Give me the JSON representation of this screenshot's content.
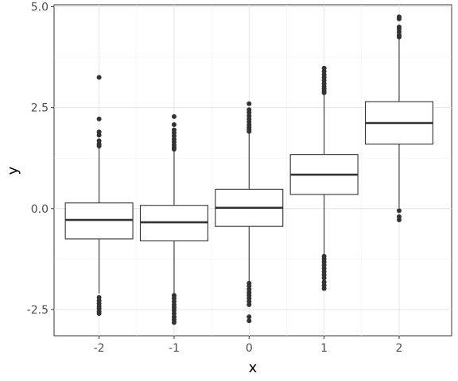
{
  "chart_data": {
    "type": "box",
    "title": "",
    "xlabel": "x",
    "ylabel": "y",
    "categories": [
      "-2",
      "-1",
      "0",
      "1",
      "2"
    ],
    "ylim": [
      -3.15,
      5.05
    ],
    "xlim": [
      -2.6,
      2.7
    ],
    "y_ticks": [
      -2.5,
      0.0,
      2.5,
      5.0
    ],
    "y_tick_labels": [
      "-2.5",
      "0.0",
      "2.5",
      "5.0"
    ],
    "grid": true,
    "boxes": [
      {
        "x": -2,
        "label": "-2",
        "q1": -0.75,
        "median": -0.28,
        "q3": 0.14,
        "whisker_low": -2.1,
        "whisker_high": 1.5,
        "outliers": [
          3.25,
          2.22,
          1.9,
          1.82,
          1.68,
          1.6,
          1.55,
          -2.2,
          -2.28,
          -2.35,
          -2.42,
          -2.48,
          -2.55,
          -2.6
        ]
      },
      {
        "x": -1,
        "label": "-1",
        "q1": -0.8,
        "median": -0.34,
        "q3": 0.08,
        "whisker_low": -2.1,
        "whisker_high": 1.45,
        "outliers": [
          2.28,
          2.08,
          1.95,
          1.88,
          1.8,
          1.72,
          1.65,
          1.58,
          1.52,
          1.47,
          -2.15,
          -2.22,
          -2.3,
          -2.38,
          -2.45,
          -2.52,
          -2.6,
          -2.68,
          -2.75,
          -2.82
        ]
      },
      {
        "x": 0,
        "label": "0",
        "q1": -0.44,
        "median": 0.02,
        "q3": 0.48,
        "whisker_low": -1.82,
        "whisker_high": 1.88,
        "outliers": [
          2.6,
          2.45,
          2.38,
          2.3,
          2.22,
          2.15,
          2.08,
          2.02,
          1.96,
          1.91,
          -1.85,
          -1.92,
          -2.0,
          -2.08,
          -2.15,
          -2.22,
          -2.3,
          -2.38,
          -2.68,
          -2.78
        ]
      },
      {
        "x": 1,
        "label": "1",
        "q1": 0.35,
        "median": 0.84,
        "q3": 1.34,
        "whisker_low": -1.15,
        "whisker_high": 2.85,
        "outliers": [
          3.48,
          3.4,
          3.32,
          3.25,
          3.18,
          3.1,
          3.03,
          2.97,
          2.91,
          2.87,
          -1.18,
          -1.25,
          -1.32,
          -1.4,
          -1.48,
          -1.56,
          -1.64,
          -1.72,
          -1.82,
          -1.9,
          -1.98
        ]
      },
      {
        "x": 2,
        "label": "2",
        "q1": 1.6,
        "median": 2.12,
        "q3": 2.65,
        "whisker_low": 0.02,
        "whisker_high": 4.22,
        "outliers": [
          4.75,
          4.7,
          4.5,
          4.45,
          4.38,
          4.3,
          4.25,
          -0.05,
          -0.2,
          -0.28
        ]
      }
    ]
  }
}
